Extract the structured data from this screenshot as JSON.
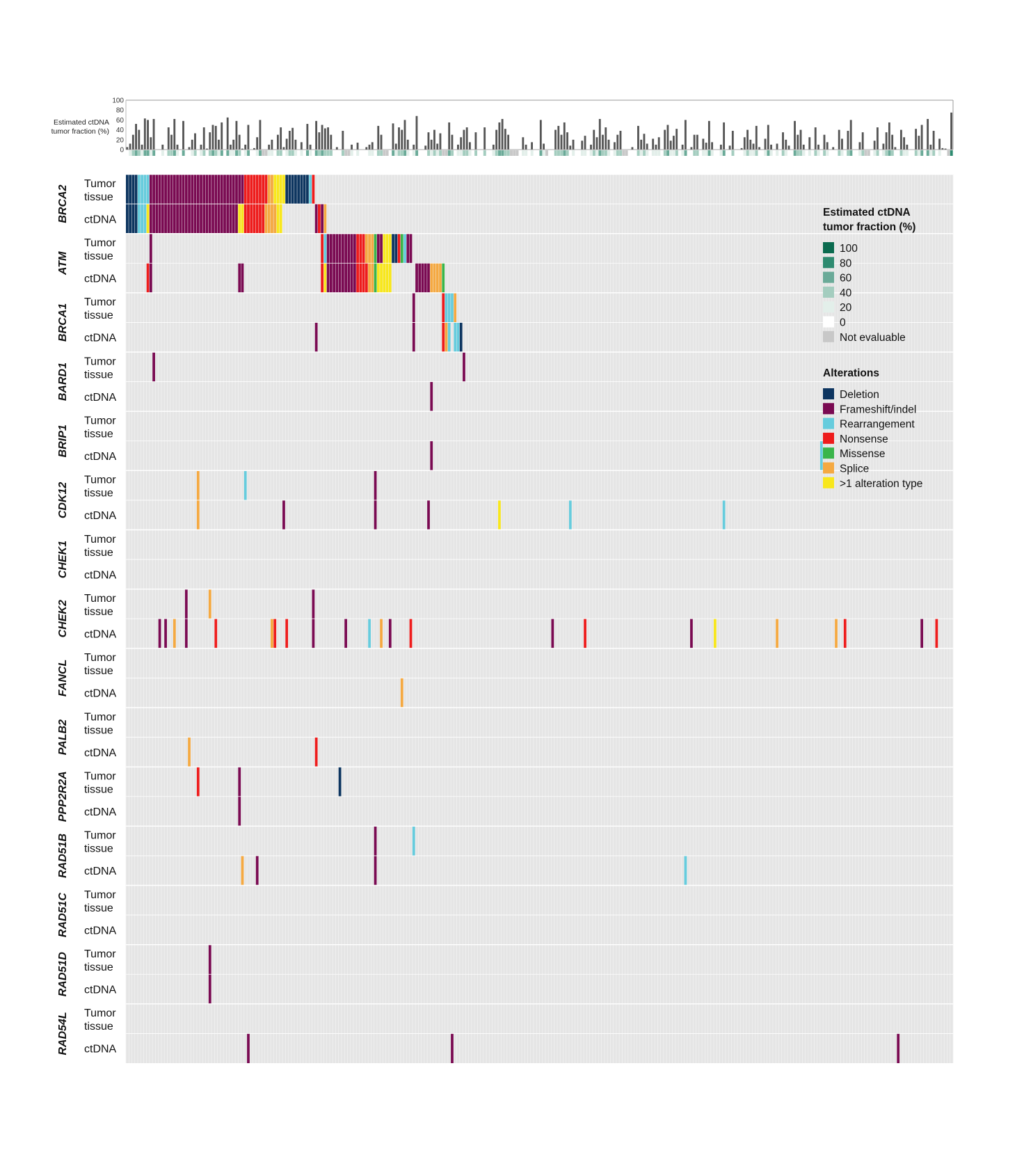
{
  "chart_data": {
    "type": "heatmap",
    "subtitle_bar": {
      "type": "bar",
      "ylabel_lines": [
        "Estimated ctDNA",
        "tumor fraction (%)"
      ],
      "ylim": [
        0,
        100
      ],
      "yticks": [
        "0",
        "20",
        "40",
        "60",
        "80",
        "100"
      ],
      "values": [
        5,
        12,
        30,
        52,
        40,
        10,
        63,
        60,
        25,
        62,
        0,
        0,
        10,
        0,
        45,
        30,
        62,
        10,
        0,
        58,
        0,
        5,
        20,
        33,
        0,
        10,
        45,
        2,
        35,
        50,
        48,
        20,
        55,
        0,
        65,
        10,
        20,
        58,
        30,
        2,
        10,
        50,
        0,
        3,
        25,
        60,
        null,
        null,
        10,
        20,
        0,
        30,
        45,
        5,
        22,
        38,
        44,
        20,
        0,
        15,
        0,
        52,
        10,
        0,
        58,
        35,
        50,
        43,
        45,
        30,
        0,
        5,
        0,
        38,
        null,
        null,
        10,
        0,
        14,
        0,
        0,
        5,
        10,
        15,
        0,
        48,
        30,
        null,
        null,
        0,
        53,
        12,
        45,
        40,
        60,
        20,
        0,
        10,
        68,
        0,
        0,
        8,
        35,
        20,
        40,
        12,
        33,
        null,
        null,
        55,
        30,
        0,
        10,
        25,
        40,
        45,
        15,
        0,
        35,
        0,
        0,
        45,
        0,
        0,
        10,
        40,
        55,
        62,
        42,
        30,
        null,
        null,
        null,
        0,
        25,
        10,
        0,
        15,
        0,
        0,
        60,
        12,
        null,
        0,
        0,
        40,
        48,
        30,
        55,
        35,
        8,
        20,
        0,
        0,
        18,
        28,
        0,
        10,
        40,
        25,
        62,
        30,
        45,
        20,
        0,
        15,
        30,
        38,
        null,
        null,
        0,
        5,
        0,
        48,
        20,
        32,
        12,
        0,
        22,
        10,
        25,
        0,
        40,
        50,
        18,
        28,
        42,
        0,
        10,
        60,
        0,
        5,
        30,
        30,
        0,
        22,
        14,
        58,
        15,
        0,
        0,
        10,
        55,
        0,
        8,
        38,
        0,
        0,
        3,
        25,
        40,
        20,
        12,
        48,
        5,
        0,
        22,
        50,
        10,
        0,
        12,
        0,
        35,
        20,
        8,
        0,
        58,
        30,
        40,
        10,
        0,
        25,
        0,
        45,
        10,
        0,
        30,
        15,
        0,
        5,
        0,
        40,
        22,
        0,
        38,
        60,
        0,
        0,
        15,
        35,
        null,
        null,
        0,
        18,
        45,
        0,
        12,
        35,
        55,
        30,
        5,
        0,
        40,
        25,
        10,
        0,
        0,
        42,
        28,
        50,
        0,
        62,
        10,
        38,
        0,
        22,
        3,
        2,
        null,
        75
      ]
    },
    "row_labels": {
      "tumor": [
        "Tumor",
        "tissue"
      ],
      "ctdna": "ctDNA"
    },
    "genes": [
      {
        "name": "BRCA2",
        "tumor": [
          [
            0,
            3,
            "D"
          ],
          [
            4,
            7,
            "R"
          ],
          [
            8,
            39,
            "F"
          ],
          [
            40,
            47,
            "N"
          ],
          [
            48,
            49,
            "S"
          ],
          [
            50,
            53,
            "Y"
          ],
          [
            54,
            61,
            "D"
          ],
          [
            62,
            62,
            "R"
          ],
          [
            63,
            63,
            "N"
          ]
        ],
        "ctdna": [
          [
            0,
            3,
            "D"
          ],
          [
            4,
            6,
            "R"
          ],
          [
            7,
            7,
            "Y"
          ],
          [
            8,
            37,
            "F"
          ],
          [
            38,
            39,
            "Y"
          ],
          [
            40,
            46,
            "N"
          ],
          [
            47,
            50,
            "S"
          ],
          [
            51,
            52,
            "Y"
          ],
          [
            64,
            64,
            "F"
          ],
          [
            65,
            65,
            "N"
          ],
          [
            66,
            66,
            "F"
          ],
          [
            67,
            67,
            "S"
          ]
        ]
      },
      {
        "name": "ATM",
        "tumor": [
          [
            8,
            8,
            "F"
          ],
          [
            66,
            66,
            "N"
          ],
          [
            67,
            67,
            "R"
          ],
          [
            68,
            77,
            "F"
          ],
          [
            78,
            80,
            "N"
          ],
          [
            81,
            83,
            "S"
          ],
          [
            84,
            84,
            "M"
          ],
          [
            85,
            86,
            "F"
          ],
          [
            87,
            89,
            "Y"
          ],
          [
            90,
            91,
            "D"
          ],
          [
            92,
            92,
            "N"
          ],
          [
            93,
            93,
            "M"
          ],
          [
            94,
            94,
            "R"
          ],
          [
            95,
            96,
            "F"
          ]
        ],
        "ctdna": [
          [
            7,
            7,
            "N"
          ],
          [
            8,
            8,
            "F"
          ],
          [
            38,
            38,
            "F"
          ],
          [
            39,
            39,
            "F"
          ],
          [
            66,
            66,
            "N"
          ],
          [
            67,
            67,
            "Y"
          ],
          [
            68,
            77,
            "F"
          ],
          [
            78,
            81,
            "N"
          ],
          [
            82,
            83,
            "S"
          ],
          [
            84,
            84,
            "M"
          ],
          [
            85,
            89,
            "Y"
          ],
          [
            98,
            102,
            "F"
          ],
          [
            103,
            106,
            "S"
          ],
          [
            107,
            107,
            "M"
          ]
        ]
      },
      {
        "name": "BRCA1",
        "tumor": [
          [
            97,
            97,
            "F"
          ],
          [
            107,
            107,
            "N"
          ],
          [
            108,
            110,
            "R"
          ],
          [
            111,
            111,
            "S"
          ]
        ],
        "ctdna": [
          [
            64,
            64,
            "F"
          ],
          [
            97,
            97,
            "F"
          ],
          [
            107,
            107,
            "N"
          ],
          [
            108,
            108,
            "S"
          ],
          [
            109,
            109,
            "R"
          ],
          [
            111,
            112,
            "R"
          ],
          [
            113,
            113,
            "D"
          ]
        ]
      },
      {
        "name": "BARD1",
        "tumor": [
          [
            9,
            9,
            "F"
          ],
          [
            114,
            114,
            "F"
          ]
        ],
        "ctdna": [
          [
            103,
            103,
            "F"
          ]
        ]
      },
      {
        "name": "BRIP1",
        "tumor": [],
        "ctdna": [
          [
            103,
            103,
            "F"
          ],
          [
            235,
            235,
            "R"
          ]
        ]
      },
      {
        "name": "CDK12",
        "tumor": [
          [
            24,
            24,
            "S"
          ],
          [
            40,
            40,
            "R"
          ],
          [
            84,
            84,
            "F"
          ]
        ],
        "ctdna": [
          [
            24,
            24,
            "S"
          ],
          [
            53,
            53,
            "F"
          ],
          [
            84,
            84,
            "F"
          ],
          [
            102,
            102,
            "F"
          ],
          [
            126,
            126,
            "Y"
          ],
          [
            150,
            150,
            "R"
          ],
          [
            202,
            202,
            "R"
          ]
        ]
      },
      {
        "name": "CHEK1",
        "tumor": [],
        "ctdna": []
      },
      {
        "name": "CHEK2",
        "tumor": [
          [
            20,
            20,
            "F"
          ],
          [
            28,
            28,
            "S"
          ],
          [
            63,
            63,
            "F"
          ]
        ],
        "ctdna": [
          [
            11,
            11,
            "F"
          ],
          [
            13,
            13,
            "F"
          ],
          [
            16,
            16,
            "S"
          ],
          [
            20,
            20,
            "F"
          ],
          [
            30,
            30,
            "N"
          ],
          [
            49,
            49,
            "S"
          ],
          [
            50,
            50,
            "N"
          ],
          [
            54,
            54,
            "N"
          ],
          [
            63,
            63,
            "F"
          ],
          [
            74,
            74,
            "F"
          ],
          [
            82,
            82,
            "R"
          ],
          [
            86,
            86,
            "S"
          ],
          [
            89,
            89,
            "F"
          ],
          [
            96,
            96,
            "N"
          ],
          [
            144,
            144,
            "F"
          ],
          [
            155,
            155,
            "N"
          ],
          [
            191,
            191,
            "F"
          ],
          [
            199,
            199,
            "Y"
          ],
          [
            220,
            220,
            "S"
          ],
          [
            240,
            240,
            "S"
          ],
          [
            243,
            243,
            "N"
          ],
          [
            269,
            269,
            "F"
          ],
          [
            274,
            274,
            "N"
          ]
        ]
      },
      {
        "name": "FANCL",
        "tumor": [],
        "ctdna": [
          [
            93,
            93,
            "S"
          ]
        ]
      },
      {
        "name": "PALB2",
        "tumor": [],
        "ctdna": [
          [
            21,
            21,
            "S"
          ],
          [
            64,
            64,
            "N"
          ]
        ]
      },
      {
        "name": "PPP2R2A",
        "tumor": [
          [
            24,
            24,
            "N"
          ],
          [
            38,
            38,
            "F"
          ],
          [
            72,
            72,
            "D"
          ]
        ],
        "ctdna": [
          [
            38,
            38,
            "F"
          ]
        ]
      },
      {
        "name": "RAD51B",
        "tumor": [
          [
            84,
            84,
            "F"
          ],
          [
            97,
            97,
            "R"
          ]
        ],
        "ctdna": [
          [
            39,
            39,
            "S"
          ],
          [
            44,
            44,
            "F"
          ],
          [
            84,
            84,
            "F"
          ],
          [
            189,
            189,
            "R"
          ]
        ]
      },
      {
        "name": "RAD51C",
        "tumor": [],
        "ctdna": []
      },
      {
        "name": "RAD51D",
        "tumor": [
          [
            28,
            28,
            "F"
          ]
        ],
        "ctdna": [
          [
            28,
            28,
            "F"
          ]
        ]
      },
      {
        "name": "RAD54L",
        "tumor": [],
        "ctdna": [
          [
            41,
            41,
            "F"
          ],
          [
            110,
            110,
            "F"
          ],
          [
            261,
            261,
            "F"
          ]
        ]
      }
    ],
    "legend_fraction": {
      "title_lines": [
        "Estimated ctDNA",
        "tumor fraction (%)"
      ],
      "items": [
        {
          "label": "100",
          "color": "#0b6b4f"
        },
        {
          "label": "80",
          "color": "#2e8b70"
        },
        {
          "label": "60",
          "color": "#6aaa98"
        },
        {
          "label": "40",
          "color": "#a4cdbf"
        },
        {
          "label": "20",
          "color": "#e3efea"
        },
        {
          "label": "0",
          "color": "#ffffff"
        },
        {
          "label": "Not evaluable",
          "color": "#c8c8c8"
        }
      ]
    },
    "legend_alterations": {
      "title": "Alterations",
      "items": [
        {
          "code": "D",
          "label": "Deletion",
          "color": "#0d3560"
        },
        {
          "code": "F",
          "label": "Frameshift/indel",
          "color": "#7a0a52"
        },
        {
          "code": "R",
          "label": "Rearrangement",
          "color": "#66ccdd"
        },
        {
          "code": "N",
          "label": "Nonsense",
          "color": "#ee1c1c"
        },
        {
          "code": "M",
          "label": "Missense",
          "color": "#3ab54a"
        },
        {
          "code": "S",
          "label": "Splice",
          "color": "#f5a941"
        },
        {
          "code": "Y",
          "label": ">1 alteration type",
          "color": "#f8e71c"
        }
      ]
    }
  }
}
